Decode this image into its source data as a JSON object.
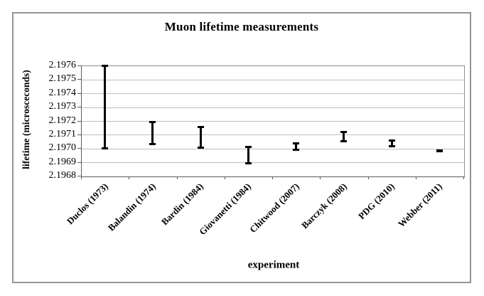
{
  "chart_data": {
    "type": "errorbar",
    "title": "Muon lifetime measurements",
    "xlabel": "experiment",
    "ylabel": "lifetime (microsceconds)",
    "categories": [
      "Duclos (1973)",
      "Balandin (1974)",
      "Bardin (1984)",
      "Giovanetti (1984)",
      "Chitwood (2007)",
      "Barczyk (2008)",
      "PDG (2010)",
      "Webber (2011)"
    ],
    "series": [
      {
        "name": "muon lifetime",
        "points": [
          {
            "category": "Duclos (1973)",
            "center": 2.1973,
            "error": 0.0003,
            "low": 2.197,
            "high": 2.1976
          },
          {
            "category": "Balandin (1974)",
            "center": 2.19711,
            "error": 8e-05,
            "low": 2.19703,
            "high": 2.19719
          },
          {
            "category": "Bardin (1984)",
            "center": 2.197078,
            "error": 7.3e-05,
            "low": 2.197005,
            "high": 2.197151
          },
          {
            "category": "Giovanetti (1984)",
            "center": 2.19695,
            "error": 6e-05,
            "low": 2.19689,
            "high": 2.19701
          },
          {
            "category": "Chitwood (2007)",
            "center": 2.197013,
            "error": 2.4e-05,
            "low": 2.196989,
            "high": 2.197037
          },
          {
            "category": "Barczyk (2008)",
            "center": 2.197083,
            "error": 3.5e-05,
            "low": 2.197048,
            "high": 2.197118
          },
          {
            "category": "PDG (2010)",
            "center": 2.197034,
            "error": 2.1e-05,
            "low": 2.197013,
            "high": 2.197055
          },
          {
            "category": "Webber (2011)",
            "center": 2.19698,
            "error": 2e-06,
            "low": 2.196978,
            "high": 2.196982
          }
        ]
      }
    ],
    "ylim": [
      2.1968,
      2.1976
    ],
    "ytick_step": 0.0001,
    "ytick_labels": [
      "2.1976",
      "2.1975",
      "2.1974",
      "2.1973",
      "2.1972",
      "2.1971",
      "2.1970",
      "2.1969",
      "2.1968"
    ],
    "grid": true,
    "legend": "none",
    "colors": {
      "bar": "#000000",
      "gridline": "#bfbfbf",
      "axis": "#5a5a5a",
      "frame": "#8c8c8c",
      "outer_border": "#949494",
      "background": "#ffffff"
    }
  }
}
